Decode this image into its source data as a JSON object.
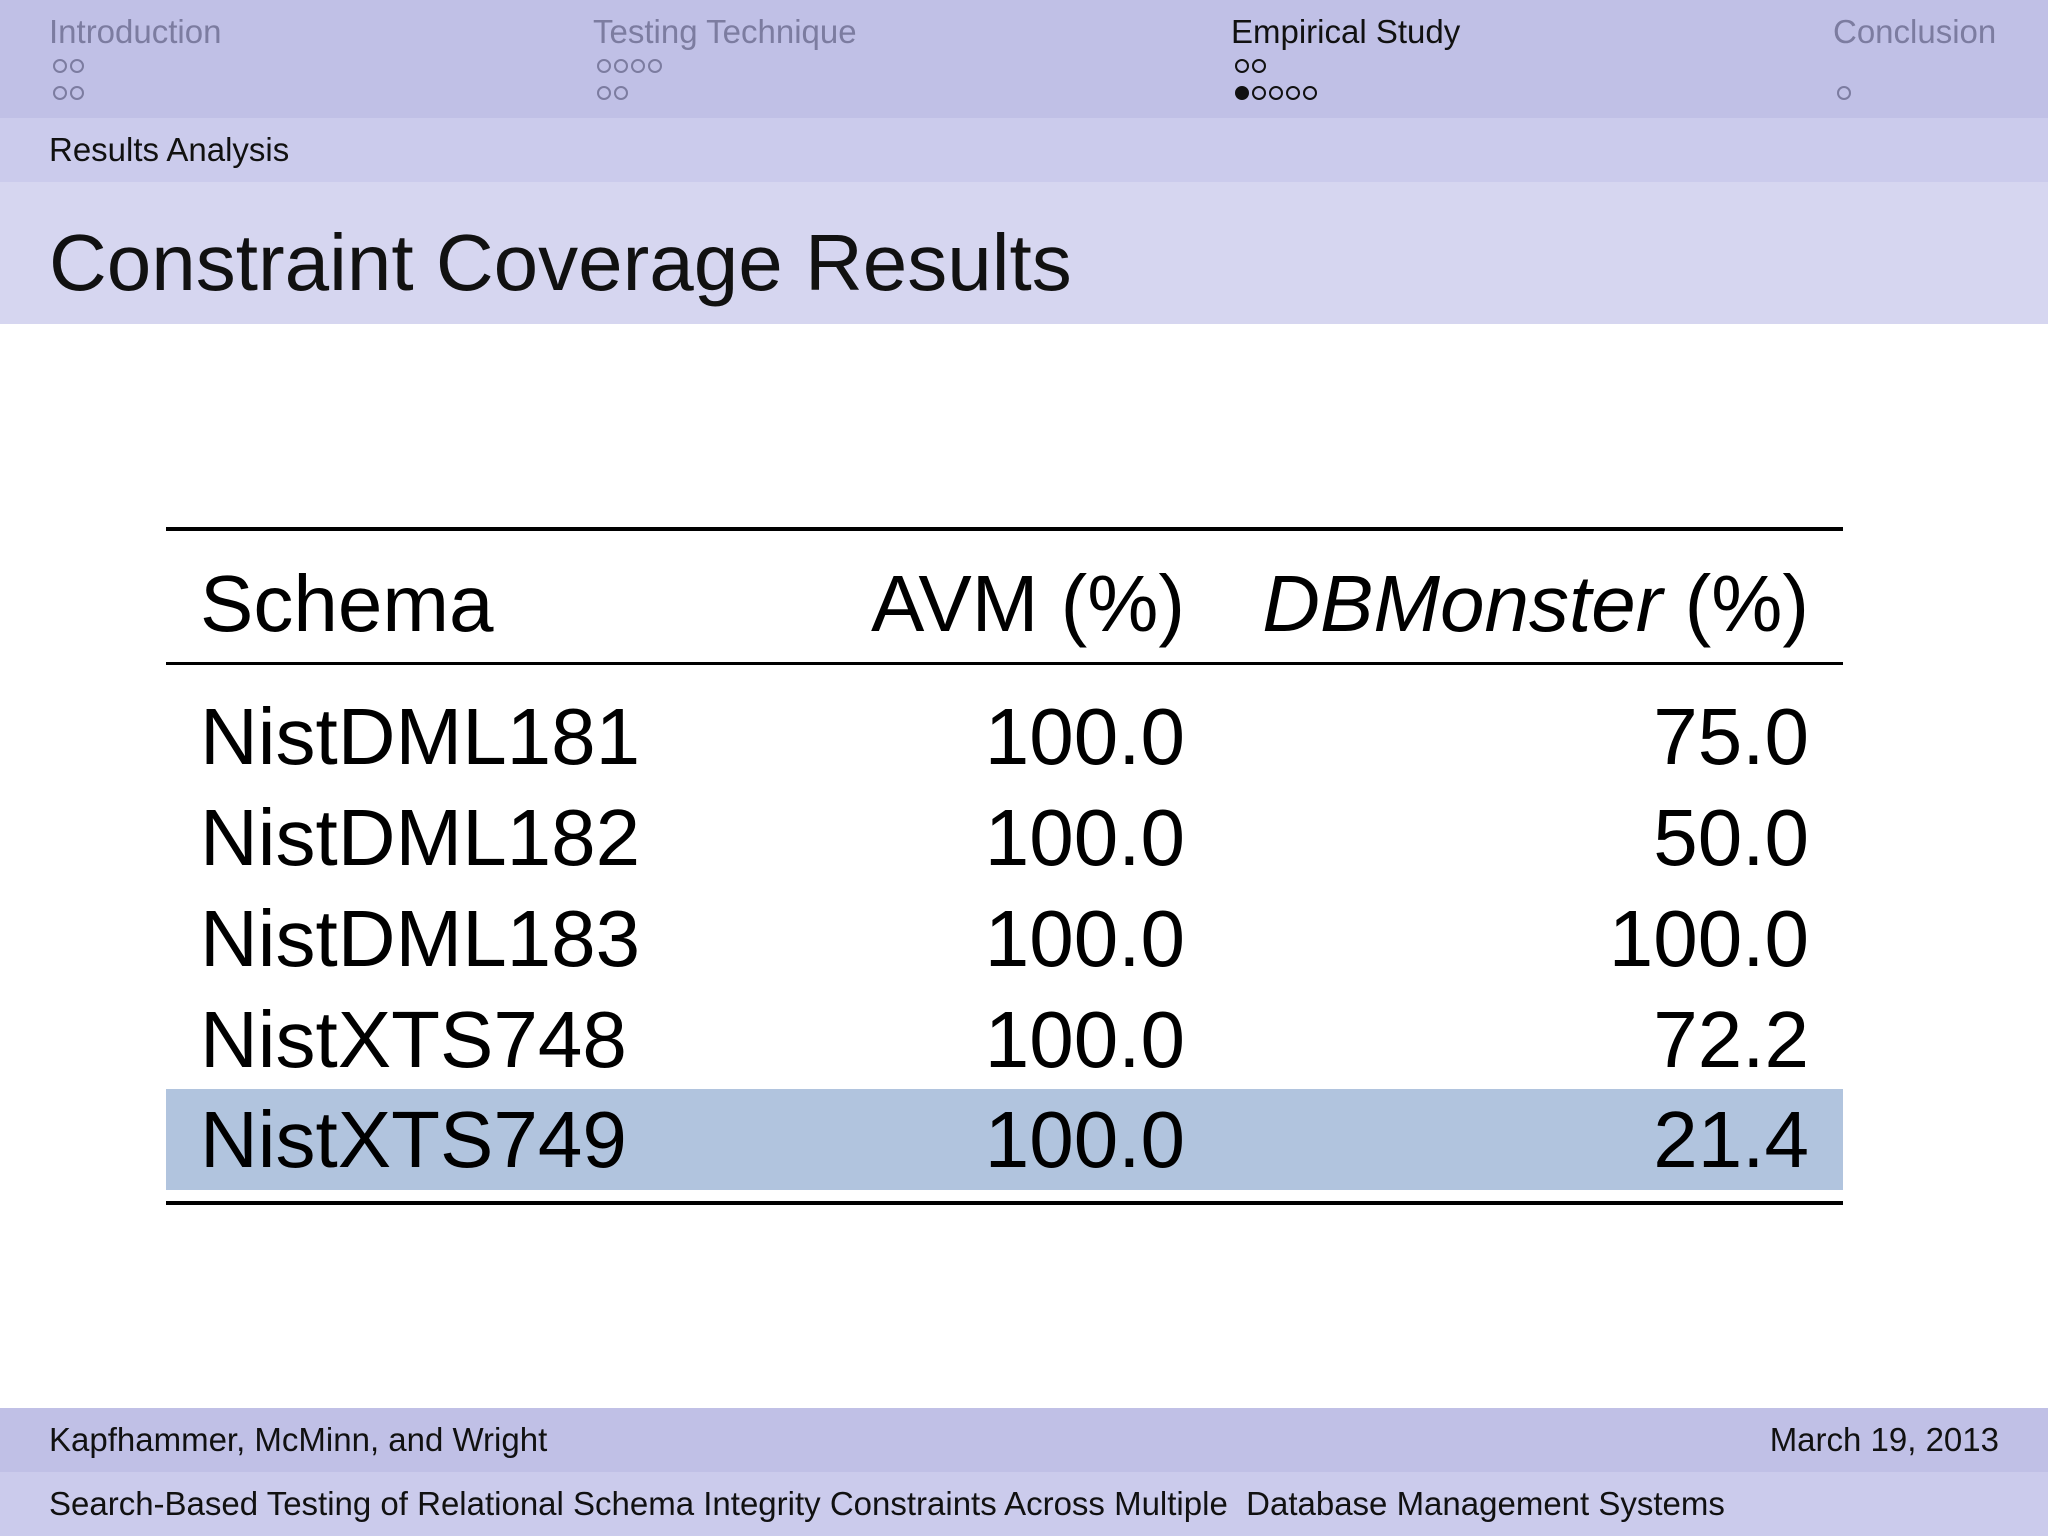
{
  "nav": {
    "sections": [
      {
        "title": "Introduction",
        "rows": [
          [
            0,
            0
          ],
          [
            0,
            0
          ]
        ],
        "active": false
      },
      {
        "title": "Testing Technique",
        "rows": [
          [
            0,
            0,
            0,
            0
          ],
          [
            0,
            0
          ]
        ],
        "active": false
      },
      {
        "title": "Empirical Study",
        "rows": [
          [
            0,
            0
          ],
          [
            1,
            0,
            0,
            0,
            0
          ]
        ],
        "active": true
      },
      {
        "title": "Conclusion",
        "rows": [
          [],
          [
            0
          ]
        ],
        "active": false
      }
    ]
  },
  "subsection": "Results Analysis",
  "title": "Constraint Coverage Results",
  "table": {
    "headers": {
      "schema": "Schema",
      "avm": "AVM (%)",
      "dbm_name": "DBMonster",
      "dbm_unit": " (%)"
    },
    "rows": [
      {
        "schema": "NistDML181",
        "avm": "100.0",
        "dbm": "75.0",
        "highlight": false
      },
      {
        "schema": "NistDML182",
        "avm": "100.0",
        "dbm": "50.0",
        "highlight": false
      },
      {
        "schema": "NistDML183",
        "avm": "100.0",
        "dbm": "100.0",
        "highlight": false
      },
      {
        "schema": "NistXTS748",
        "avm": "100.0",
        "dbm": "72.2",
        "highlight": false
      },
      {
        "schema": "NistXTS749",
        "avm": "100.0",
        "dbm": "21.4",
        "highlight": true
      }
    ]
  },
  "footer": {
    "authors": "Kapfhammer, McMinn, and Wright",
    "date": "March 19, 2013",
    "talk_title": "Search-Based Testing of Relational Schema Integrity Constraints Across Multiple  Database Management Systems"
  },
  "colors": {
    "nav_bg": "#c0c0e6",
    "subbar_bg": "#cbcbec",
    "title_bg": "#d6d6f0",
    "highlight_row": "#b1c4de",
    "inactive_text": "#7c7ca0"
  }
}
